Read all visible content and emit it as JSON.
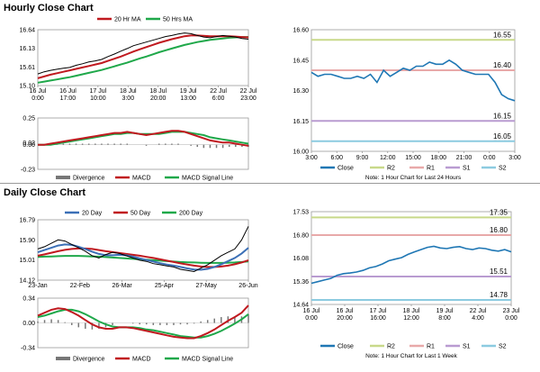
{
  "sections": {
    "hourly_title": "Hourly Close Chart",
    "daily_title": "Daily Close Chart"
  },
  "colors": {
    "price": "#000000",
    "ma_short": "#c0191f",
    "ma_long": "#1fa84a",
    "ma_blue": "#3b6fb6",
    "close_line": "#1f77b4",
    "r2": "#c8d98a",
    "r1": "#e8a9a9",
    "s1": "#b99bd1",
    "s2": "#8ccbe0",
    "divergence": "#777777"
  },
  "chart_data": [
    {
      "id": "hourly_price",
      "type": "line",
      "title": "Hourly Close Chart",
      "y_ticks": [
        "16.64",
        "16.13",
        "15.61",
        "15.10"
      ],
      "ylim": [
        15.1,
        16.64
      ],
      "x_ticks": [
        "16 Jul\n0:00",
        "16 Jul\n17:00",
        "17 Jul\n10:00",
        "18 Jul\n3:00",
        "18 Jul\n20:00",
        "19 Jul\n13:00",
        "22 Jul\n6:00",
        "22 Jul\n23:00"
      ],
      "legend": [
        "20 Hr MA",
        "50 Hrs MA"
      ],
      "series": [
        {
          "name": "Close",
          "values": [
            15.42,
            15.48,
            15.52,
            15.55,
            15.58,
            15.6,
            15.66,
            15.7,
            15.75,
            15.78,
            15.82,
            15.9,
            15.97,
            16.05,
            16.12,
            16.2,
            16.25,
            16.3,
            16.35,
            16.4,
            16.45,
            16.48,
            16.52,
            16.55,
            16.53,
            16.48,
            16.44,
            16.42,
            16.45,
            16.48,
            16.46,
            16.44,
            16.4,
            16.38
          ]
        },
        {
          "name": "20 Hr MA",
          "values": [
            15.3,
            15.35,
            15.4,
            15.44,
            15.48,
            15.52,
            15.56,
            15.6,
            15.64,
            15.68,
            15.72,
            15.78,
            15.84,
            15.9,
            15.97,
            16.04,
            16.1,
            16.16,
            16.22,
            16.28,
            16.33,
            16.38,
            16.42,
            16.46,
            16.48,
            16.48,
            16.47,
            16.46,
            16.46,
            16.46,
            16.46,
            16.45,
            16.44,
            16.43
          ]
        },
        {
          "name": "50 Hrs MA",
          "values": [
            15.18,
            15.21,
            15.24,
            15.27,
            15.3,
            15.33,
            15.37,
            15.41,
            15.45,
            15.49,
            15.53,
            15.58,
            15.63,
            15.68,
            15.73,
            15.79,
            15.85,
            15.9,
            15.96,
            16.02,
            16.07,
            16.12,
            16.17,
            16.22,
            16.26,
            16.3,
            16.33,
            16.36,
            16.38,
            16.4,
            16.42,
            16.43,
            16.44,
            16.44
          ]
        }
      ]
    },
    {
      "id": "hourly_macd",
      "type": "line",
      "y_ticks": [
        "0.25",
        "0.02",
        "0.00",
        "-0.23"
      ],
      "ylim": [
        -0.23,
        0.25
      ],
      "legend": [
        "Divergence",
        "MACD",
        "MACD Signal Line"
      ],
      "series": [
        {
          "name": "MACD",
          "values": [
            0.0,
            0.0,
            0.01,
            0.02,
            0.03,
            0.04,
            0.05,
            0.06,
            0.07,
            0.08,
            0.09,
            0.1,
            0.11,
            0.11,
            0.12,
            0.11,
            0.1,
            0.09,
            0.1,
            0.11,
            0.12,
            0.13,
            0.13,
            0.12,
            0.1,
            0.08,
            0.06,
            0.04,
            0.03,
            0.02,
            0.02,
            0.01,
            0.0,
            -0.01
          ]
        },
        {
          "name": "MACD Signal Line",
          "values": [
            0.0,
            0.0,
            0.0,
            0.01,
            0.02,
            0.03,
            0.04,
            0.05,
            0.06,
            0.07,
            0.08,
            0.09,
            0.1,
            0.1,
            0.11,
            0.11,
            0.1,
            0.1,
            0.1,
            0.1,
            0.11,
            0.12,
            0.12,
            0.12,
            0.11,
            0.1,
            0.09,
            0.07,
            0.06,
            0.05,
            0.04,
            0.03,
            0.02,
            0.01
          ]
        },
        {
          "name": "Divergence",
          "values": [
            0.0,
            0.0,
            0.01,
            0.01,
            0.01,
            0.01,
            0.01,
            0.01,
            0.01,
            0.01,
            0.01,
            0.01,
            0.01,
            0.01,
            0.01,
            0.0,
            0.0,
            -0.01,
            0.0,
            0.01,
            0.01,
            0.01,
            0.01,
            0.0,
            -0.01,
            -0.02,
            -0.03,
            -0.03,
            -0.03,
            -0.03,
            -0.02,
            -0.02,
            -0.02,
            -0.02
          ]
        }
      ]
    },
    {
      "id": "hourly_close_24h",
      "type": "line",
      "note": "Note: 1 Hour Chart for Last 24 Hours",
      "y_ticks": [
        "16.60",
        "16.45",
        "16.30",
        "16.15",
        "16.00"
      ],
      "ylim": [
        16.0,
        16.6
      ],
      "x_ticks": [
        "3:00",
        "6:00",
        "9:00",
        "12:00",
        "15:00",
        "18:00",
        "21:00",
        "0:00",
        "3:00"
      ],
      "legend": [
        "Close",
        "R2",
        "R1",
        "S1",
        "S2"
      ],
      "levels": [
        {
          "name": "R2",
          "value": 16.55,
          "label": "16.55"
        },
        {
          "name": "R1",
          "value": 16.4,
          "label": "16.40"
        },
        {
          "name": "S1",
          "value": 16.15,
          "label": "16.15"
        },
        {
          "name": "S2",
          "value": 16.05,
          "label": "16.05"
        }
      ],
      "series": [
        {
          "name": "Close",
          "values": [
            16.39,
            16.37,
            16.38,
            16.38,
            16.37,
            16.36,
            16.36,
            16.37,
            16.36,
            16.38,
            16.34,
            16.4,
            16.37,
            16.39,
            16.41,
            16.4,
            16.42,
            16.42,
            16.44,
            16.43,
            16.43,
            16.45,
            16.43,
            16.4,
            16.39,
            16.38,
            16.38,
            16.38,
            16.34,
            16.28,
            16.26,
            16.25
          ]
        }
      ]
    },
    {
      "id": "daily_price",
      "type": "line",
      "title": "Daily Close Chart",
      "y_ticks": [
        "16.79",
        "15.90",
        "15.01",
        "14.12"
      ],
      "ylim": [
        14.12,
        16.79
      ],
      "x_ticks": [
        "23-Jan",
        "22-Feb",
        "26-Mar",
        "25-Apr",
        "27-May",
        "26-Jun"
      ],
      "legend": [
        "20 Day",
        "50 Day",
        "200 Day"
      ],
      "series": [
        {
          "name": "Close",
          "values": [
            15.5,
            15.6,
            15.75,
            15.9,
            15.85,
            15.7,
            15.55,
            15.4,
            15.2,
            15.1,
            15.25,
            15.35,
            15.3,
            15.2,
            15.1,
            15.0,
            14.95,
            14.85,
            14.8,
            14.75,
            14.7,
            14.6,
            14.55,
            14.5,
            14.65,
            14.8,
            15.0,
            15.2,
            15.35,
            15.5,
            15.9,
            16.5
          ]
        },
        {
          "name": "20 Day",
          "values": [
            15.35,
            15.45,
            15.55,
            15.65,
            15.7,
            15.68,
            15.6,
            15.5,
            15.38,
            15.28,
            15.22,
            15.22,
            15.24,
            15.22,
            15.16,
            15.08,
            15.01,
            14.94,
            14.87,
            14.81,
            14.76,
            14.7,
            14.64,
            14.59,
            14.58,
            14.62,
            14.7,
            14.82,
            14.96,
            15.1,
            15.3,
            15.55
          ]
        },
        {
          "name": "50 Day",
          "values": [
            15.2,
            15.26,
            15.33,
            15.4,
            15.46,
            15.5,
            15.52,
            15.52,
            15.5,
            15.45,
            15.4,
            15.36,
            15.32,
            15.28,
            15.24,
            15.2,
            15.15,
            15.1,
            15.04,
            14.98,
            14.92,
            14.86,
            14.81,
            14.76,
            14.72,
            14.7,
            14.7,
            14.72,
            14.76,
            14.82,
            14.9,
            15.0
          ]
        },
        {
          "name": "200 Day",
          "values": [
            15.15,
            15.16,
            15.17,
            15.18,
            15.19,
            15.19,
            15.19,
            15.18,
            15.17,
            15.16,
            15.14,
            15.12,
            15.1,
            15.08,
            15.06,
            15.04,
            15.02,
            15.0,
            14.98,
            14.96,
            14.94,
            14.92,
            14.91,
            14.9,
            14.89,
            14.88,
            14.88,
            14.88,
            14.89,
            14.9,
            14.92,
            14.95
          ]
        }
      ]
    },
    {
      "id": "daily_macd",
      "type": "line",
      "y_ticks": [
        "0.34",
        "0.00",
        "-0.34"
      ],
      "ylim": [
        -0.34,
        0.34
      ],
      "legend": [
        "Divergence",
        "MACD",
        "MACD Signal Line"
      ],
      "series": [
        {
          "name": "MACD",
          "values": [
            0.1,
            0.14,
            0.18,
            0.2,
            0.19,
            0.15,
            0.1,
            0.04,
            -0.02,
            -0.06,
            -0.08,
            -0.08,
            -0.06,
            -0.06,
            -0.07,
            -0.09,
            -0.11,
            -0.13,
            -0.15,
            -0.17,
            -0.19,
            -0.2,
            -0.21,
            -0.21,
            -0.18,
            -0.14,
            -0.09,
            -0.03,
            0.03,
            0.08,
            0.14,
            0.24
          ]
        },
        {
          "name": "MACD Signal Line",
          "values": [
            0.08,
            0.1,
            0.13,
            0.16,
            0.18,
            0.18,
            0.16,
            0.12,
            0.07,
            0.02,
            -0.02,
            -0.05,
            -0.06,
            -0.06,
            -0.06,
            -0.07,
            -0.09,
            -0.1,
            -0.12,
            -0.14,
            -0.16,
            -0.18,
            -0.19,
            -0.2,
            -0.2,
            -0.18,
            -0.15,
            -0.11,
            -0.06,
            -0.01,
            0.05,
            0.12
          ]
        },
        {
          "name": "Divergence",
          "values": [
            0.02,
            0.04,
            0.05,
            0.04,
            0.01,
            -0.03,
            -0.06,
            -0.08,
            -0.09,
            -0.08,
            -0.06,
            -0.03,
            0.0,
            0.0,
            -0.01,
            -0.02,
            -0.02,
            -0.03,
            -0.03,
            -0.03,
            -0.03,
            -0.02,
            -0.02,
            -0.01,
            0.02,
            0.04,
            0.06,
            0.08,
            0.09,
            0.09,
            0.09,
            0.12
          ]
        }
      ]
    },
    {
      "id": "daily_close_week",
      "type": "line",
      "note": "Note: 1 Hour Chart for Last 1 Week",
      "y_ticks": [
        "17.53",
        "16.80",
        "16.08",
        "15.36",
        "14.64"
      ],
      "ylim": [
        14.64,
        17.53
      ],
      "x_ticks": [
        "16 Jul\n0:00",
        "16 Jul\n20:00",
        "17 Jul\n16:00",
        "18 Jul\n12:00",
        "19 Jul\n8:00",
        "22 Jul\n4:00",
        "23 Jul\n0:00"
      ],
      "legend": [
        "Close",
        "R2",
        "R1",
        "S1",
        "S2"
      ],
      "levels": [
        {
          "name": "R2",
          "value": 17.35,
          "label": "17.35"
        },
        {
          "name": "R1",
          "value": 16.8,
          "label": "16.80"
        },
        {
          "name": "S1",
          "value": 15.51,
          "label": "15.51"
        },
        {
          "name": "S2",
          "value": 14.78,
          "label": "14.78"
        }
      ],
      "series": [
        {
          "name": "Close",
          "values": [
            15.3,
            15.35,
            15.4,
            15.45,
            15.55,
            15.6,
            15.62,
            15.65,
            15.7,
            15.78,
            15.82,
            15.9,
            16.0,
            16.05,
            16.1,
            16.2,
            16.28,
            16.35,
            16.42,
            16.45,
            16.4,
            16.38,
            16.42,
            16.44,
            16.38,
            16.35,
            16.4,
            16.38,
            16.33,
            16.3,
            16.35,
            16.28
          ]
        }
      ]
    }
  ]
}
